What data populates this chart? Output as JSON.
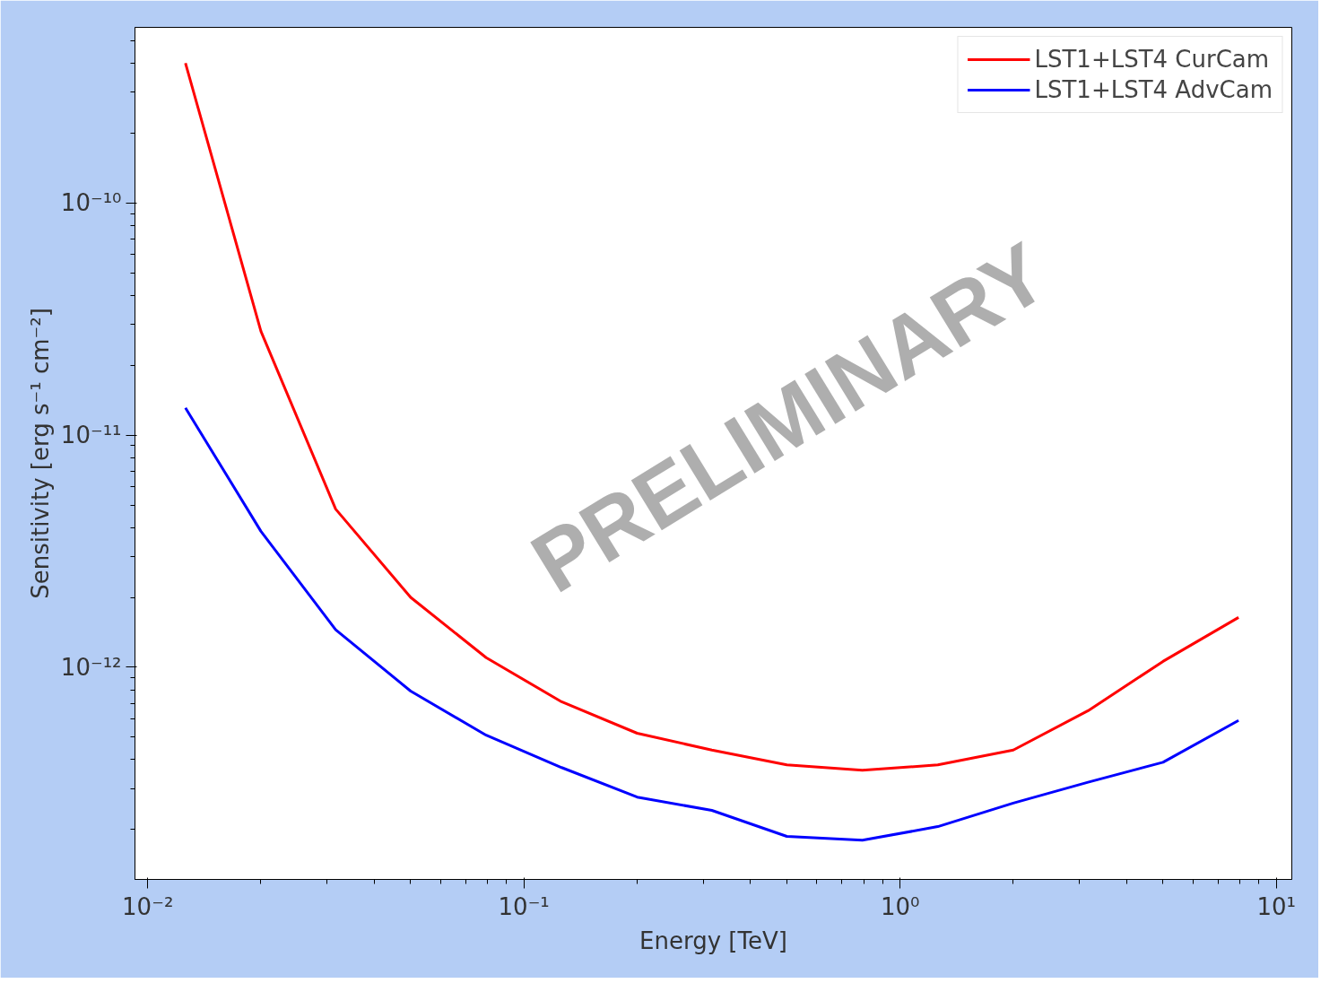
{
  "chart_data": {
    "type": "line",
    "xlabel": "Energy [TeV]",
    "ylabel": "Sensitivity [erg s⁻¹ cm⁻²]",
    "log": "xy",
    "grid": false,
    "legend": "top right",
    "line_style": "solid",
    "marker": "none",
    "x": [
      0.0126,
      0.02,
      0.0316,
      0.05,
      0.0794,
      0.126,
      0.2,
      0.316,
      0.5,
      0.794,
      1.26,
      2,
      3.16,
      5,
      7.94
    ],
    "series": [
      {
        "name": "LST1+LST4 CurCam",
        "color": "#ff0000",
        "values": [
          4e-10,
          2.8e-11,
          4.8e-12,
          2e-12,
          1.1e-12,
          7.1e-13,
          5.2e-13,
          4.4e-13,
          3.8e-13,
          3.6e-13,
          3.8e-13,
          4.4e-13,
          6.5e-13,
          1.06e-12,
          1.64e-12
        ]
      },
      {
        "name": "LST1+LST4 AdvCam",
        "color": "#0000ff",
        "values": [
          1.31e-11,
          3.85e-12,
          1.45e-12,
          7.9e-13,
          5.1e-13,
          3.7e-13,
          2.76e-13,
          2.42e-13,
          1.87e-13,
          1.8e-13,
          2.06e-13,
          2.6e-13,
          3.2e-13,
          3.9e-13,
          5.9e-13
        ]
      }
    ],
    "xlim": [
      0.00925,
      11
    ],
    "ylim": [
      1.22e-13,
      5.7e-10
    ],
    "xticks": [
      {
        "value": 0.01,
        "label": "10⁻²"
      },
      {
        "value": 0.1,
        "label": "10⁻¹"
      },
      {
        "value": 1,
        "label": "10⁰"
      },
      {
        "value": 10,
        "label": "10¹"
      }
    ],
    "yticks": [
      {
        "value": 1e-12,
        "label": "10⁻¹²"
      },
      {
        "value": 1e-11,
        "label": "10⁻¹¹"
      },
      {
        "value": 1e-10,
        "label": "10⁻¹⁰"
      }
    ],
    "annotations": [
      "PRELIMINARY"
    ]
  }
}
